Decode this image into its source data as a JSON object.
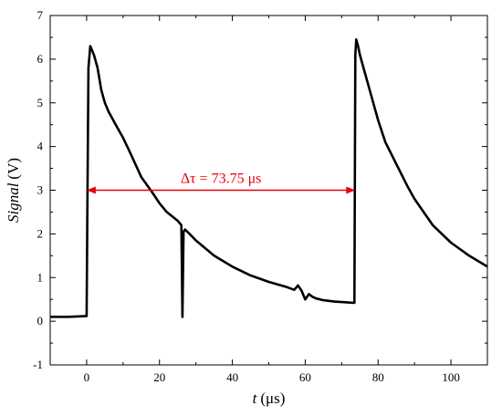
{
  "chart_data": {
    "type": "line",
    "title": "",
    "xlabel_var": "t",
    "xlabel_unit": "(μs)",
    "ylabel_var": "Signal",
    "ylabel_unit": "(V)",
    "xlim": [
      -10,
      110
    ],
    "ylim": [
      -1,
      7
    ],
    "x_ticks": [
      0,
      20,
      40,
      60,
      80,
      100
    ],
    "y_ticks": [
      -1,
      0,
      1,
      2,
      3,
      4,
      5,
      6,
      7
    ],
    "grid": false,
    "legend": "none",
    "line_color": "#000000",
    "annotation_color": "#e8000b",
    "series": [
      {
        "x": [
          -10,
          -5,
          0,
          0.2,
          0.5,
          1,
          2,
          3,
          4,
          5,
          6,
          8,
          10,
          12,
          15,
          18,
          20,
          22,
          25,
          26,
          26.3,
          26.6,
          27,
          28,
          30,
          35,
          40,
          45,
          50,
          55,
          57,
          58,
          59,
          60,
          61,
          62,
          63,
          65,
          68,
          70,
          73.5,
          73.75,
          74,
          74.5,
          75,
          76,
          78,
          80,
          82,
          85,
          88,
          90,
          95,
          100,
          105,
          110
        ],
        "y": [
          0.1,
          0.1,
          0.12,
          2.5,
          5.8,
          6.3,
          6.1,
          5.8,
          5.3,
          5.0,
          4.8,
          4.5,
          4.2,
          3.85,
          3.3,
          2.95,
          2.7,
          2.5,
          2.3,
          2.2,
          0.1,
          2.05,
          2.1,
          2.02,
          1.85,
          1.5,
          1.25,
          1.05,
          0.9,
          0.78,
          0.72,
          0.82,
          0.7,
          0.5,
          0.62,
          0.56,
          0.52,
          0.48,
          0.45,
          0.44,
          0.42,
          6.1,
          6.45,
          6.3,
          6.1,
          5.8,
          5.2,
          4.6,
          4.1,
          3.6,
          3.1,
          2.8,
          2.2,
          1.8,
          1.5,
          1.25
        ]
      }
    ],
    "annotation": {
      "text": "Δτ = 73.75 μs",
      "x_start": 0,
      "x_end": 73.75,
      "y": 3.0
    }
  }
}
